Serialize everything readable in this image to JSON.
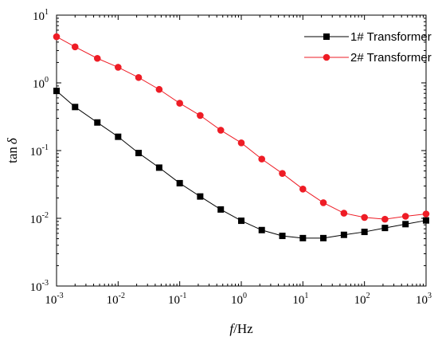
{
  "chart_data": {
    "type": "line",
    "x_scale": "log",
    "y_scale": "log",
    "xlabel_italic": "f",
    "xlabel_unit": "/Hz",
    "ylabel_prefix": "tan",
    "ylabel_symbol": "δ",
    "xlim": [
      0.001,
      1000
    ],
    "ylim": [
      0.001,
      10
    ],
    "x_ticks": [
      {
        "base": "10",
        "exp": "-3"
      },
      {
        "base": "10",
        "exp": "-2"
      },
      {
        "base": "10",
        "exp": "-1"
      },
      {
        "base": "10",
        "exp": "0"
      },
      {
        "base": "10",
        "exp": "1"
      },
      {
        "base": "10",
        "exp": "2"
      },
      {
        "base": "10",
        "exp": "3"
      }
    ],
    "y_ticks": [
      {
        "base": "10",
        "exp": "-3"
      },
      {
        "base": "10",
        "exp": "-2"
      },
      {
        "base": "10",
        "exp": "-1"
      },
      {
        "base": "10",
        "exp": "0"
      },
      {
        "base": "10",
        "exp": "1"
      }
    ],
    "grid": false,
    "legend_position": "top-right",
    "series": [
      {
        "name": "1# Transformer",
        "color": "#000000",
        "marker": "square",
        "x": [
          0.001,
          0.002,
          0.0046,
          0.01,
          0.0215,
          0.0464,
          0.1,
          0.215,
          0.464,
          1,
          2.15,
          4.64,
          10,
          21.5,
          46.4,
          100,
          215,
          464,
          1000
        ],
        "y": [
          0.76,
          0.44,
          0.26,
          0.16,
          0.092,
          0.056,
          0.033,
          0.021,
          0.0135,
          0.0092,
          0.0067,
          0.0055,
          0.0051,
          0.0051,
          0.0057,
          0.0063,
          0.0072,
          0.0082,
          0.0093
        ]
      },
      {
        "name": "2# Transformer",
        "color": "#ee1c25",
        "marker": "circle",
        "x": [
          0.001,
          0.002,
          0.0046,
          0.01,
          0.0215,
          0.0464,
          0.1,
          0.215,
          0.464,
          1,
          2.15,
          4.64,
          10,
          21.5,
          46.4,
          100,
          215,
          464,
          1000
        ],
        "y": [
          4.8,
          3.4,
          2.3,
          1.7,
          1.2,
          0.8,
          0.5,
          0.33,
          0.2,
          0.13,
          0.075,
          0.046,
          0.027,
          0.017,
          0.0119,
          0.0103,
          0.0097,
          0.0107,
          0.0116
        ]
      }
    ]
  }
}
